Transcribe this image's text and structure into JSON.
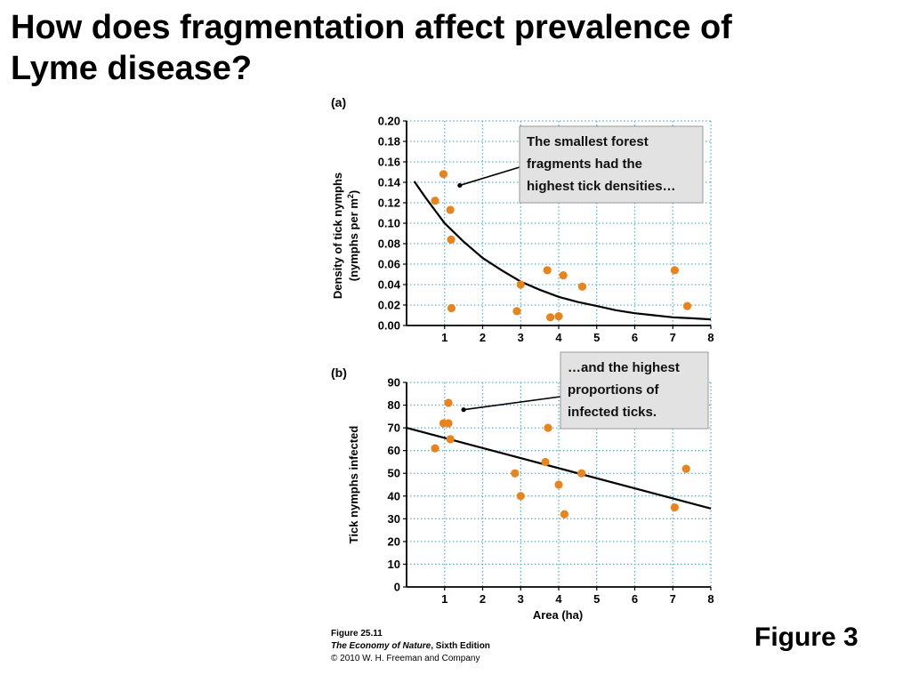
{
  "title": {
    "line1": "How does fragmentation affect prevalence of",
    "line2": "Lyme disease?"
  },
  "figure_label": "Figure 3",
  "caption": {
    "figure_number": "Figure 25.11",
    "book_title": "The Economy of Nature",
    "edition": ", Sixth Edition",
    "copyright": "© 2010 W. H. Freeman and Company"
  },
  "colors": {
    "point": "#e8841c",
    "grid": "#5ab4d6",
    "callout_fill": "#e2e2e2",
    "line": "#000000"
  },
  "chart_data": [
    {
      "type": "scatter",
      "panel": "(a)",
      "ylabel_line1": "Density of tick nymphs",
      "ylabel_line2": "(nymphs per m",
      "ylabel_superscript": "2",
      "ylabel_close": ")",
      "xlabel": "",
      "xlim": [
        0,
        8
      ],
      "ylim": [
        0,
        0.2
      ],
      "xticks": [
        1,
        2,
        3,
        4,
        5,
        6,
        7,
        8
      ],
      "yticks": [
        "0.00",
        "0.02",
        "0.04",
        "0.06",
        "0.08",
        "0.10",
        "0.12",
        "0.14",
        "0.16",
        "0.18",
        "0.20"
      ],
      "grid": true,
      "points": [
        {
          "x": 0.75,
          "y": 0.122
        },
        {
          "x": 0.97,
          "y": 0.148
        },
        {
          "x": 1.15,
          "y": 0.113
        },
        {
          "x": 1.17,
          "y": 0.084
        },
        {
          "x": 1.18,
          "y": 0.017
        },
        {
          "x": 2.9,
          "y": 0.014
        },
        {
          "x": 3.0,
          "y": 0.04
        },
        {
          "x": 3.7,
          "y": 0.054
        },
        {
          "x": 3.78,
          "y": 0.008
        },
        {
          "x": 4.0,
          "y": 0.009
        },
        {
          "x": 4.12,
          "y": 0.049
        },
        {
          "x": 4.62,
          "y": 0.038
        },
        {
          "x": 7.05,
          "y": 0.054
        },
        {
          "x": 7.38,
          "y": 0.019
        }
      ],
      "fit": {
        "kind": "exponential-decay",
        "points": [
          {
            "x": 0.2,
            "y": 0.141
          },
          {
            "x": 0.5,
            "y": 0.125
          },
          {
            "x": 1.0,
            "y": 0.1
          },
          {
            "x": 1.5,
            "y": 0.082
          },
          {
            "x": 2.0,
            "y": 0.066
          },
          {
            "x": 2.5,
            "y": 0.054
          },
          {
            "x": 3.0,
            "y": 0.043
          },
          {
            "x": 3.5,
            "y": 0.035
          },
          {
            "x": 4.0,
            "y": 0.028
          },
          {
            "x": 4.5,
            "y": 0.023
          },
          {
            "x": 5.0,
            "y": 0.019
          },
          {
            "x": 5.5,
            "y": 0.015
          },
          {
            "x": 6.0,
            "y": 0.012
          },
          {
            "x": 6.5,
            "y": 0.01
          },
          {
            "x": 7.0,
            "y": 0.008
          },
          {
            "x": 7.5,
            "y": 0.007
          },
          {
            "x": 8.0,
            "y": 0.006
          }
        ]
      },
      "annotation": {
        "lines": [
          "The smallest forest",
          "fragments had the",
          "highest tick densities…"
        ],
        "target": {
          "x": 1.4,
          "y": 0.137
        }
      }
    },
    {
      "type": "scatter",
      "panel": "(b)",
      "ylabel": "Tick nymphs infected",
      "xlabel": "Area (ha)",
      "xlim": [
        0,
        8
      ],
      "ylim": [
        0,
        90
      ],
      "xticks": [
        1,
        2,
        3,
        4,
        5,
        6,
        7,
        8
      ],
      "yticks": [
        "0",
        "10",
        "20",
        "30",
        "40",
        "50",
        "60",
        "70",
        "80",
        "90"
      ],
      "grid": true,
      "points": [
        {
          "x": 0.75,
          "y": 61
        },
        {
          "x": 0.97,
          "y": 72
        },
        {
          "x": 1.1,
          "y": 81
        },
        {
          "x": 1.1,
          "y": 72
        },
        {
          "x": 1.15,
          "y": 65
        },
        {
          "x": 2.85,
          "y": 50
        },
        {
          "x": 3.0,
          "y": 40
        },
        {
          "x": 3.65,
          "y": 55
        },
        {
          "x": 3.72,
          "y": 70
        },
        {
          "x": 4.0,
          "y": 45
        },
        {
          "x": 4.15,
          "y": 32
        },
        {
          "x": 4.6,
          "y": 50
        },
        {
          "x": 7.05,
          "y": 35
        },
        {
          "x": 7.35,
          "y": 52
        }
      ],
      "fit": {
        "kind": "linear",
        "points": [
          {
            "x": 0,
            "y": 70
          },
          {
            "x": 8,
            "y": 34.5
          }
        ]
      },
      "annotation": {
        "lines": [
          "…and the highest",
          "proportions of",
          "infected ticks."
        ],
        "target": {
          "x": 1.5,
          "y": 78
        }
      }
    }
  ]
}
